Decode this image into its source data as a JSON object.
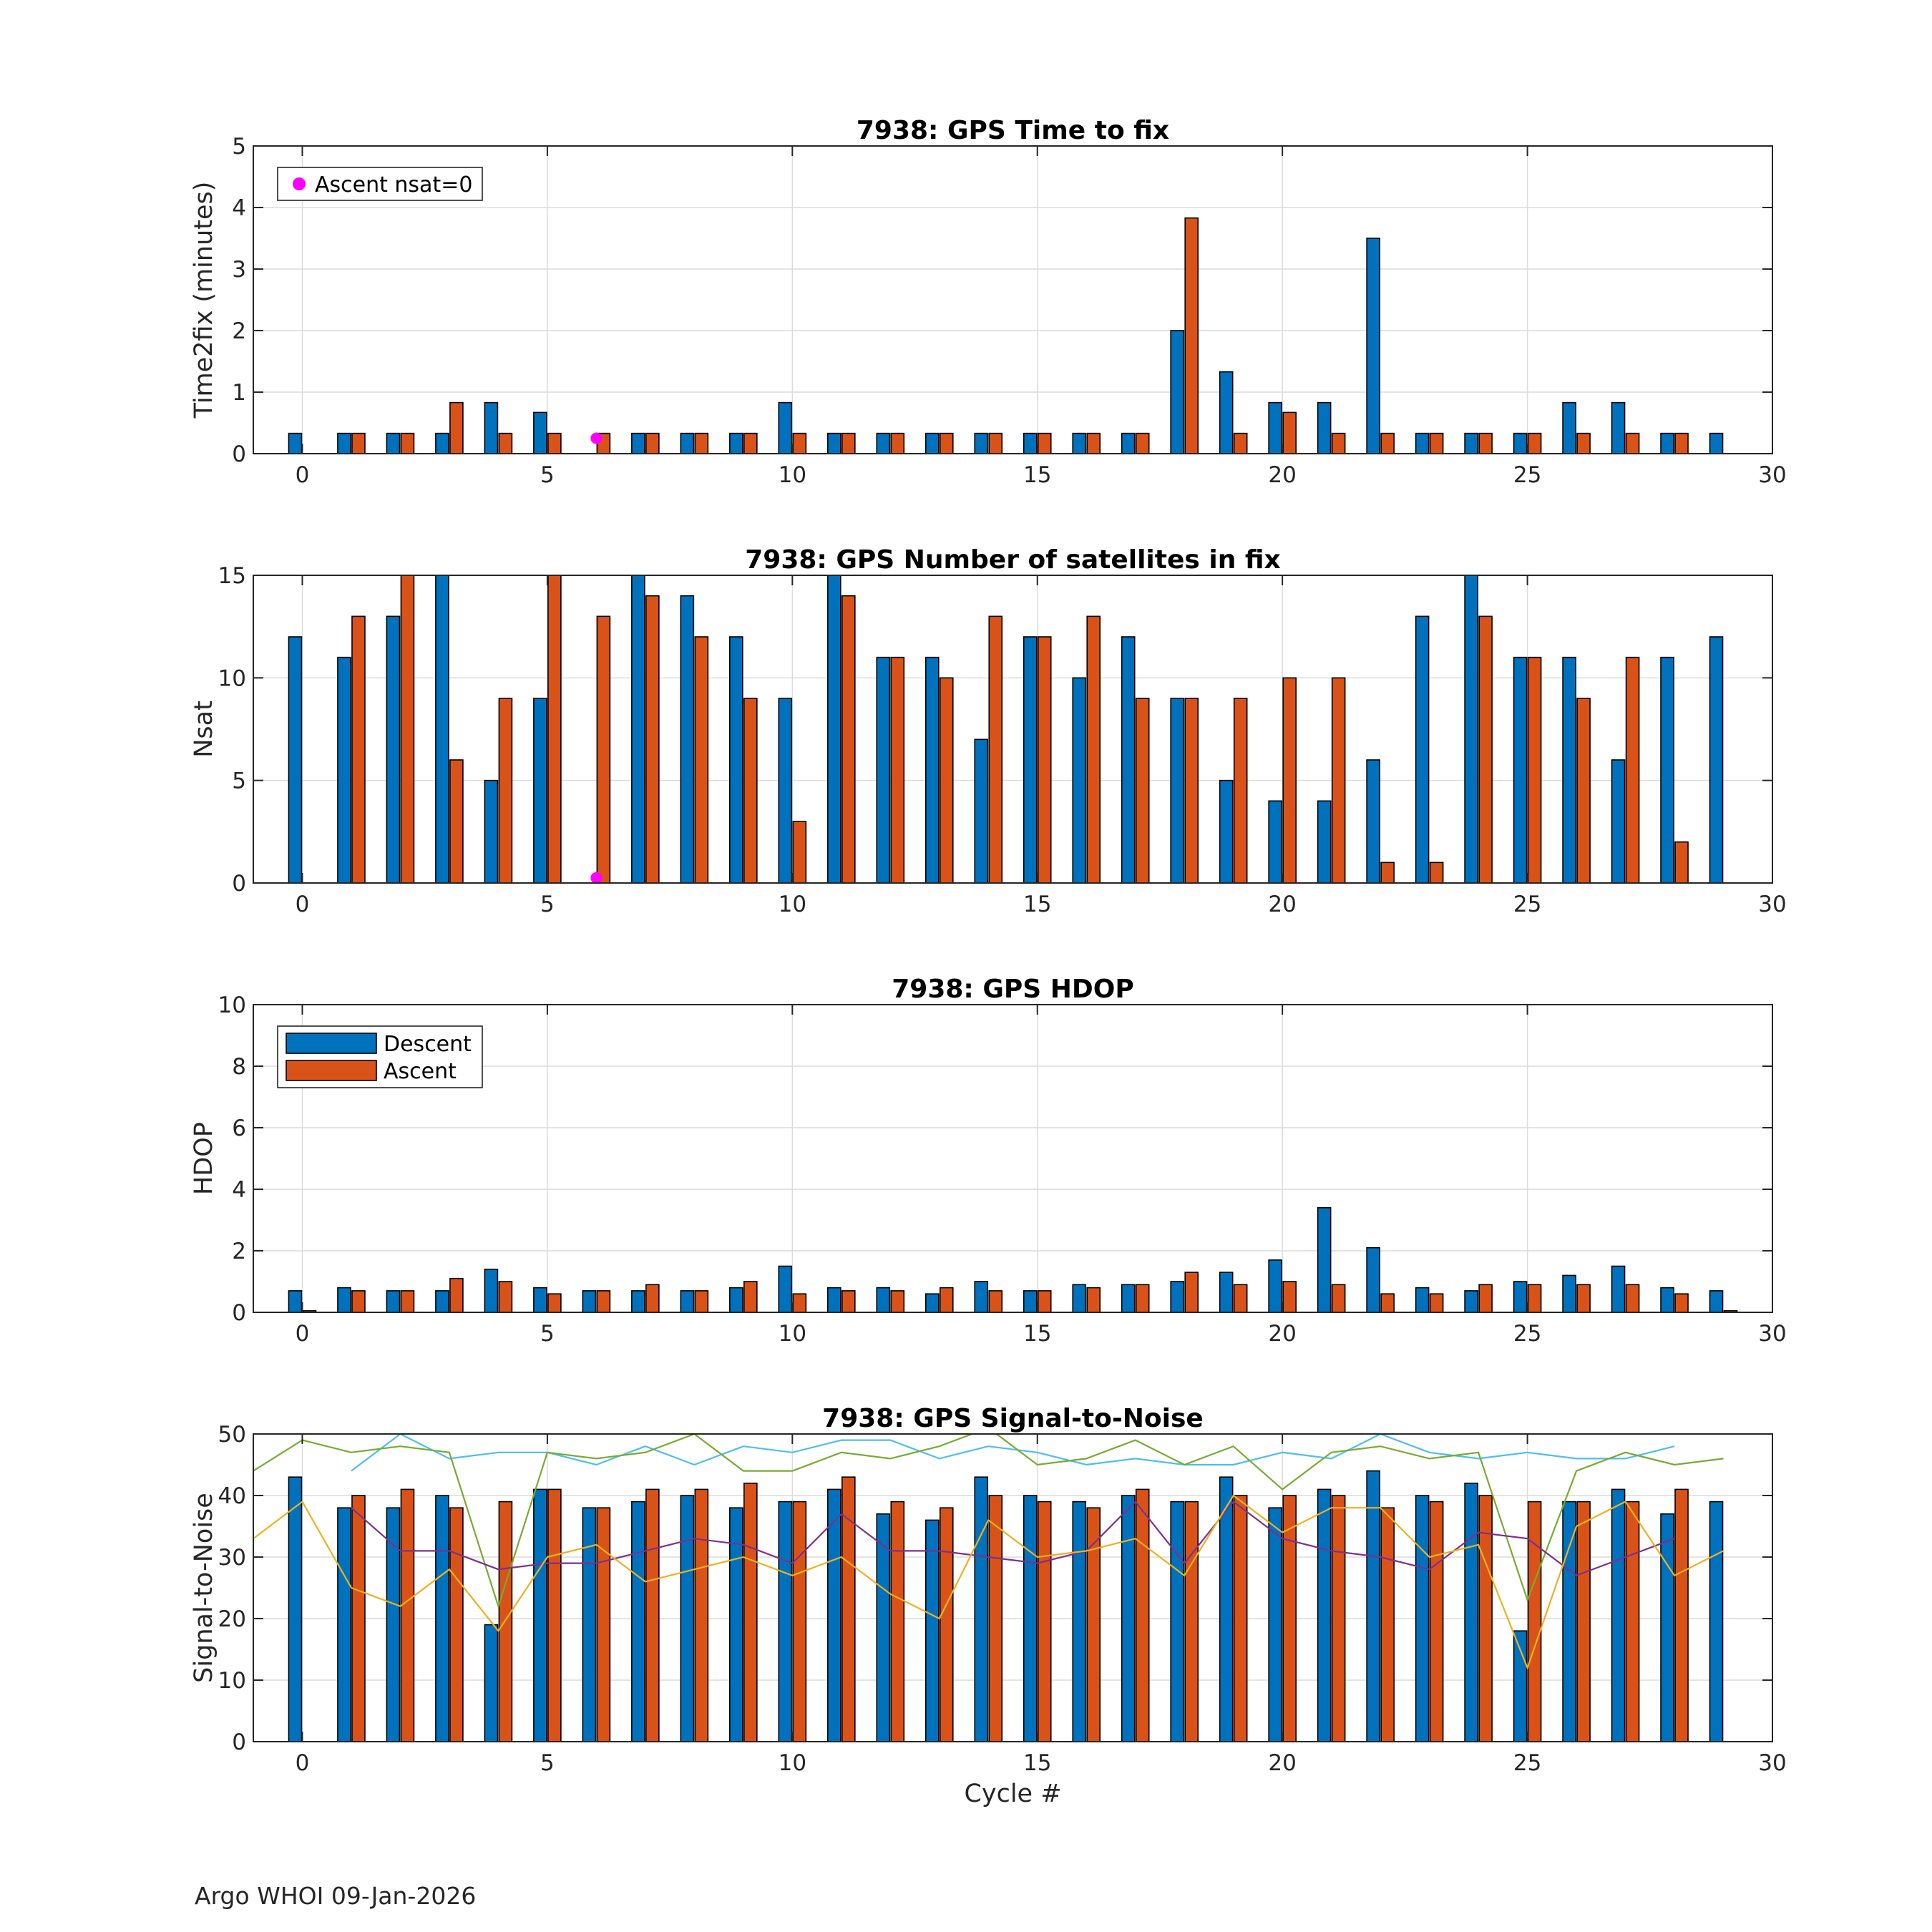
{
  "footer": "Argo WHOI 09-Jan-2026",
  "colors": {
    "descent": "#0072BD",
    "ascent": "#D95319",
    "marker": "#FF00FF",
    "sn_lines": [
      "#4DBEEE",
      "#77AC30",
      "#7E2F8E",
      "#EDB120"
    ]
  },
  "chart_data": [
    {
      "type": "bar",
      "title": "7938: GPS Time to fix",
      "xlabel": "",
      "ylabel": "Time2fix (minutes)",
      "xlim": [
        -1,
        30
      ],
      "ylim": [
        0,
        5
      ],
      "xticks": [
        0,
        5,
        10,
        15,
        20,
        25,
        30
      ],
      "yticks": [
        0,
        1,
        2,
        3,
        4,
        5
      ],
      "grid": true,
      "x": [
        0,
        1,
        2,
        3,
        4,
        5,
        6,
        7,
        8,
        9,
        10,
        11,
        12,
        13,
        14,
        15,
        16,
        17,
        18,
        19,
        20,
        21,
        22,
        23,
        24,
        25,
        26,
        27,
        28,
        29
      ],
      "series": [
        {
          "name": "Descent",
          "values": [
            0.33,
            0.33,
            0.33,
            0.33,
            0.83,
            0.67,
            0,
            0.33,
            0.33,
            0.33,
            0.83,
            0.33,
            0.33,
            0.33,
            0.33,
            0.33,
            0.33,
            0.33,
            2.0,
            1.33,
            0.83,
            0.83,
            3.5,
            0.33,
            0.33,
            0.33,
            0.83,
            0.83,
            0.33,
            0.33
          ]
        },
        {
          "name": "Ascent",
          "values": [
            0,
            0.33,
            0.33,
            0.83,
            0.33,
            0.33,
            0.33,
            0.33,
            0.33,
            0.33,
            0.33,
            0.33,
            0.33,
            0.33,
            0.33,
            0.33,
            0.33,
            0.33,
            3.83,
            0.33,
            0.67,
            0.33,
            0.33,
            0.33,
            0.33,
            0.33,
            0.33,
            0.33,
            0.33,
            0
          ]
        }
      ],
      "markers": {
        "name": "Ascent nsat=0",
        "points": [
          {
            "x": 6,
            "y": 0.25
          }
        ]
      },
      "legend": {
        "position": "top-left",
        "entries": [
          "Ascent nsat=0"
        ]
      }
    },
    {
      "type": "bar",
      "title": "7938: GPS Number of satellites in fix",
      "xlabel": "",
      "ylabel": "Nsat",
      "xlim": [
        -1,
        30
      ],
      "ylim": [
        0,
        15
      ],
      "xticks": [
        0,
        5,
        10,
        15,
        20,
        25,
        30
      ],
      "yticks": [
        0,
        5,
        10,
        15
      ],
      "grid": true,
      "x": [
        0,
        1,
        2,
        3,
        4,
        5,
        6,
        7,
        8,
        9,
        10,
        11,
        12,
        13,
        14,
        15,
        16,
        17,
        18,
        19,
        20,
        21,
        22,
        23,
        24,
        25,
        26,
        27,
        28,
        29
      ],
      "series": [
        {
          "name": "Descent",
          "values": [
            12,
            11,
            13,
            15,
            5,
            9,
            0,
            15,
            14,
            12,
            9,
            15,
            11,
            11,
            7,
            12,
            10,
            12,
            9,
            5,
            4,
            4,
            6,
            13,
            15,
            11,
            11,
            6,
            11,
            12
          ]
        },
        {
          "name": "Ascent",
          "values": [
            0,
            13,
            15,
            6,
            9,
            15,
            13,
            14,
            12,
            9,
            3,
            14,
            11,
            10,
            13,
            12,
            13,
            9,
            9,
            9,
            10,
            10,
            1,
            1,
            13,
            11,
            9,
            11,
            2,
            0
          ]
        }
      ],
      "markers": {
        "name": "Ascent nsat=0",
        "points": [
          {
            "x": 6,
            "y": 0.25
          }
        ]
      }
    },
    {
      "type": "bar",
      "title": "7938: GPS HDOP",
      "xlabel": "",
      "ylabel": "HDOP",
      "xlim": [
        -1,
        30
      ],
      "ylim": [
        0,
        10
      ],
      "xticks": [
        0,
        5,
        10,
        15,
        20,
        25,
        30
      ],
      "yticks": [
        0,
        2,
        4,
        6,
        8,
        10
      ],
      "grid": true,
      "x": [
        0,
        1,
        2,
        3,
        4,
        5,
        6,
        7,
        8,
        9,
        10,
        11,
        12,
        13,
        14,
        15,
        16,
        17,
        18,
        19,
        20,
        21,
        22,
        23,
        24,
        25,
        26,
        27,
        28,
        29
      ],
      "series": [
        {
          "name": "Descent",
          "values": [
            0.7,
            0.8,
            0.7,
            0.7,
            1.4,
            0.8,
            0.7,
            0.7,
            0.7,
            0.8,
            1.5,
            0.8,
            0.8,
            0.6,
            1.0,
            0.7,
            0.9,
            0.9,
            1.0,
            1.3,
            1.7,
            3.4,
            2.1,
            0.8,
            0.7,
            1.0,
            1.2,
            1.5,
            0.8,
            0.7
          ]
        },
        {
          "name": "Ascent",
          "values": [
            0.05,
            0.7,
            0.7,
            1.1,
            1.0,
            0.6,
            0.7,
            0.9,
            0.7,
            1.0,
            0.6,
            0.7,
            0.7,
            0.8,
            0.7,
            0.7,
            0.8,
            0.9,
            1.3,
            0.9,
            1.0,
            0.9,
            0.6,
            0.6,
            0.9,
            0.9,
            0.9,
            0.9,
            0.6,
            0.05
          ]
        }
      ],
      "legend": {
        "position": "top-left",
        "entries": [
          "Descent",
          "Ascent"
        ]
      }
    },
    {
      "type": "bar",
      "title": "7938: GPS Signal-to-Noise",
      "xlabel": "Cycle #",
      "ylabel": "Signal-to-Noise",
      "xlim": [
        -1,
        30
      ],
      "ylim": [
        0,
        50
      ],
      "xticks": [
        0,
        5,
        10,
        15,
        20,
        25,
        30
      ],
      "yticks": [
        0,
        10,
        20,
        30,
        40,
        50
      ],
      "grid": true,
      "x": [
        0,
        1,
        2,
        3,
        4,
        5,
        6,
        7,
        8,
        9,
        10,
        11,
        12,
        13,
        14,
        15,
        16,
        17,
        18,
        19,
        20,
        21,
        22,
        23,
        24,
        25,
        26,
        27,
        28,
        29
      ],
      "series": [
        {
          "name": "Descent",
          "values": [
            43,
            38,
            38,
            40,
            19,
            41,
            38,
            39,
            40,
            38,
            39,
            41,
            37,
            36,
            43,
            40,
            39,
            40,
            39,
            43,
            38,
            41,
            44,
            40,
            42,
            18,
            39,
            41,
            37,
            39
          ]
        },
        {
          "name": "Ascent",
          "values": [
            0,
            40,
            41,
            38,
            39,
            41,
            38,
            41,
            41,
            42,
            39,
            43,
            39,
            38,
            40,
            39,
            38,
            41,
            39,
            40,
            40,
            40,
            38,
            39,
            40,
            39,
            39,
            39,
            41,
            0
          ]
        }
      ],
      "lines": [
        {
          "x": [
            1,
            2,
            3,
            4,
            5,
            6,
            7,
            8,
            9,
            10,
            11,
            12,
            13,
            14,
            15,
            16,
            17,
            18,
            19,
            20,
            21,
            22,
            23,
            24,
            25,
            26,
            27,
            28
          ],
          "values": [
            44,
            50,
            46,
            47,
            47,
            45,
            48,
            45,
            48,
            47,
            49,
            49,
            46,
            48,
            47,
            45,
            46,
            45,
            45,
            47,
            46,
            50,
            47,
            46,
            47,
            46,
            46,
            48
          ]
        },
        {
          "x": [
            -1,
            0,
            1,
            2,
            3,
            4,
            5,
            6,
            7,
            8,
            9,
            10,
            11,
            12,
            13,
            14,
            15,
            16,
            17,
            18,
            19,
            20,
            21,
            22,
            23,
            24,
            25,
            26,
            27,
            28,
            29
          ],
          "values": [
            44,
            49,
            47,
            48,
            47,
            22,
            47,
            46,
            47,
            50,
            44,
            44,
            47,
            46,
            48,
            51,
            45,
            46,
            49,
            45,
            48,
            41,
            47,
            48,
            46,
            47,
            23,
            44,
            47,
            45,
            46
          ]
        },
        {
          "x": [
            1,
            2,
            3,
            4,
            5,
            6,
            7,
            8,
            9,
            10,
            11,
            12,
            13,
            14,
            15,
            16,
            17,
            18,
            19,
            20,
            21,
            22,
            23,
            24,
            25,
            26,
            27,
            28
          ],
          "values": [
            38,
            31,
            31,
            28,
            29,
            29,
            31,
            33,
            32,
            29,
            37,
            31,
            31,
            30,
            29,
            31,
            39,
            29,
            39,
            33,
            31,
            30,
            28,
            34,
            33,
            27,
            30,
            33
          ]
        },
        {
          "x": [
            -1,
            0,
            1,
            2,
            3,
            4,
            5,
            6,
            7,
            8,
            9,
            10,
            11,
            12,
            13,
            14,
            15,
            16,
            17,
            18,
            19,
            20,
            21,
            22,
            23,
            24,
            25,
            26,
            27,
            28,
            29
          ],
          "values": [
            33,
            39,
            25,
            22,
            28,
            18,
            30,
            32,
            26,
            28,
            30,
            27,
            30,
            24,
            20,
            36,
            30,
            31,
            33,
            27,
            40,
            34,
            38,
            38,
            30,
            32,
            12,
            35,
            39,
            27,
            31
          ]
        }
      ]
    }
  ]
}
